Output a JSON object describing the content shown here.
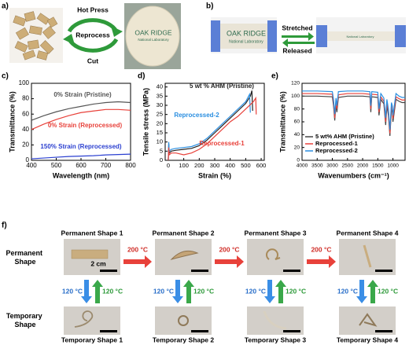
{
  "panel_labels": [
    "a)",
    "b)",
    "c)",
    "d)",
    "e)",
    "f)"
  ],
  "panel_a": {
    "hot_press": "Hot Press",
    "reprocess": "Reprocess",
    "cut": "Cut",
    "logo_name": "OAK RIDGE",
    "logo_sub": "National Laboratory"
  },
  "panel_b": {
    "stretched": "Stretched",
    "released": "Released",
    "logo_name": "OAK RIDGE",
    "logo_sub": "National Laboratory",
    "stretched_text": "National Laboratory"
  },
  "chart_data": [
    {
      "type": "line",
      "xlabel": "Wavelength (nm)",
      "ylabel": "Transmittance (%)",
      "xlim": [
        400,
        800
      ],
      "xticks": [
        400,
        500,
        600,
        700,
        800
      ],
      "ylim": [
        0,
        100
      ],
      "yticks": [
        0,
        20,
        40,
        60,
        80,
        100
      ],
      "legend": "inline",
      "x": [
        400,
        450,
        500,
        550,
        600,
        650,
        700,
        750,
        800
      ],
      "series": [
        {
          "name": "0% Strain (Pristine)",
          "color": "#555555",
          "values": [
            52,
            58,
            63,
            67,
            70,
            73,
            75,
            76,
            75
          ]
        },
        {
          "name": "0% Strain (Reprocessed)",
          "color": "#e8413a",
          "values": [
            40,
            47,
            53,
            58,
            62,
            64,
            66,
            66,
            65
          ]
        },
        {
          "name": "150% Strain (Reprocessed)",
          "color": "#2a3fd0",
          "values": [
            2,
            3,
            4,
            5,
            5.5,
            6,
            7,
            7.5,
            8
          ]
        }
      ]
    },
    {
      "type": "line",
      "xlabel": "Strain (%)",
      "ylabel": "Tensile stress (MPa)",
      "xlim": [
        -20,
        620
      ],
      "xticks": [
        0,
        100,
        200,
        300,
        400,
        500,
        600
      ],
      "ylim": [
        0,
        42
      ],
      "yticks": [
        0,
        5,
        10,
        15,
        20,
        25,
        30,
        35,
        40
      ],
      "legend": "inline",
      "series": [
        {
          "name": "5 wt % AHM (Pristine)",
          "color": "#222222",
          "x": [
            0,
            3,
            6,
            20,
            50,
            100,
            150,
            200,
            250,
            300,
            350,
            400,
            450,
            500,
            530,
            540,
            545
          ],
          "values": [
            0,
            9,
            4,
            5,
            5.5,
            6,
            6.5,
            8,
            11,
            15,
            19,
            23,
            27,
            31,
            35,
            38,
            27
          ]
        },
        {
          "name": "Reprocessed-2",
          "color": "#2a8ee0",
          "x": [
            0,
            3,
            6,
            20,
            50,
            100,
            150,
            200,
            250,
            300,
            350,
            400,
            450,
            500,
            525,
            530
          ],
          "values": [
            0,
            10,
            5,
            6,
            6.5,
            7,
            7.5,
            9,
            12,
            16,
            20,
            24,
            28,
            32,
            36,
            26
          ]
        },
        {
          "name": "Reprocessed-1",
          "color": "#e8413a",
          "x": [
            0,
            3,
            6,
            20,
            50,
            100,
            150,
            200,
            250,
            300,
            350,
            400,
            450,
            500,
            550,
            565,
            568
          ],
          "values": [
            0,
            7,
            3,
            4,
            4,
            3,
            4,
            6,
            9,
            13,
            17,
            21,
            24,
            28,
            32,
            34,
            25
          ]
        }
      ]
    },
    {
      "type": "line",
      "xlabel": "Wavenumbers (cm⁻¹)",
      "ylabel": "Transmittance (%)",
      "xlim": [
        4000,
        600
      ],
      "xticks": [
        4000,
        3500,
        3000,
        2500,
        2000,
        1500,
        1000
      ],
      "ylim": [
        0,
        120
      ],
      "yticks": [
        0,
        20,
        40,
        60,
        80,
        100,
        120
      ],
      "legend": "lower left",
      "x": [
        4000,
        3500,
        3000,
        2960,
        2920,
        2880,
        2850,
        2800,
        2500,
        2000,
        1760,
        1730,
        1700,
        1500,
        1460,
        1400,
        1300,
        1240,
        1200,
        1150,
        1100,
        1050,
        1020,
        1000,
        900,
        800,
        700,
        600
      ],
      "series": [
        {
          "name": "5 wt% AHM (Pristine)",
          "color": "#444444",
          "values": [
            100,
            100,
            99,
            85,
            62,
            88,
            75,
            98,
            100,
            100,
            99,
            75,
            99,
            98,
            70,
            95,
            88,
            55,
            85,
            70,
            38,
            80,
            75,
            60,
            95,
            92,
            90,
            90
          ]
        },
        {
          "name": "Reprocessed-1",
          "color": "#e8413a",
          "values": [
            104,
            104,
            103,
            90,
            66,
            92,
            80,
            102,
            104,
            104,
            103,
            80,
            103,
            102,
            75,
            99,
            92,
            60,
            90,
            75,
            42,
            85,
            80,
            65,
            99,
            96,
            94,
            94
          ]
        },
        {
          "name": "Reprocessed-2",
          "color": "#2a8ee0",
          "values": [
            108,
            108,
            107,
            95,
            72,
            97,
            85,
            107,
            108,
            108,
            107,
            85,
            107,
            106,
            80,
            104,
            97,
            66,
            95,
            80,
            48,
            90,
            85,
            70,
            104,
            100,
            98,
            98
          ]
        }
      ]
    }
  ],
  "panel_f": {
    "row_labels": [
      [
        "Permanent",
        "Shape"
      ],
      [
        "Temporary",
        "Shape"
      ]
    ],
    "scale_bar": "2 cm",
    "heat_arrows": [
      "200 °C",
      "200 °C",
      "200 °C"
    ],
    "columns": [
      {
        "permanent": "Permanent Shape 1",
        "temporary": "Temporary Shape 1",
        "cool": "120 °C",
        "heat": "120 °C"
      },
      {
        "permanent": "Permanent Shape 2",
        "temporary": "Temporary Shape 2",
        "cool": "120 °C",
        "heat": "120 °C"
      },
      {
        "permanent": "Permanent Shape 3",
        "temporary": "Temporary Shape 3",
        "cool": "120 °C",
        "heat": "120 °C"
      },
      {
        "permanent": "Permanent Shape 4",
        "temporary": "Temporary Shape 4",
        "cool": "120 °C",
        "heat": "120 °C"
      }
    ]
  }
}
